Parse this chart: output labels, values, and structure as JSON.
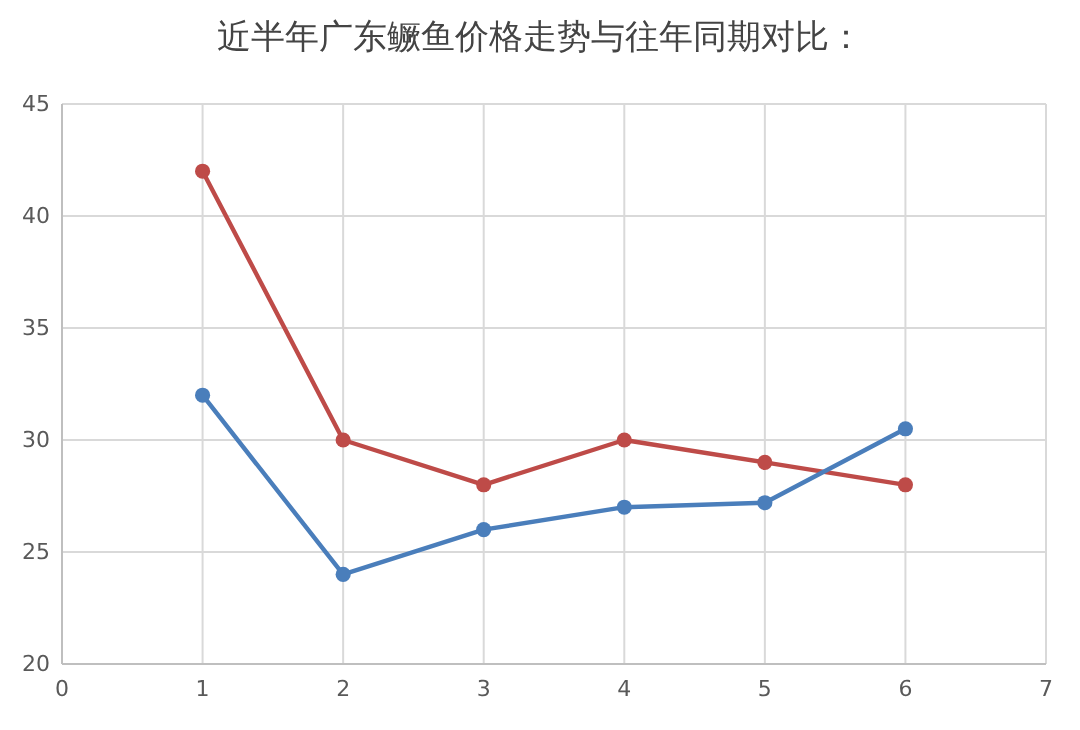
{
  "chart_data": {
    "type": "line",
    "title": "近半年广东鳜鱼价格走势与往年同期对比：",
    "x": [
      1,
      2,
      3,
      4,
      5,
      6
    ],
    "series": [
      {
        "color": "#be4b48",
        "values": [
          42,
          30,
          28,
          30,
          29,
          28
        ]
      },
      {
        "color": "#4a7ebb",
        "values": [
          32,
          24,
          26,
          27,
          27.2,
          30.5
        ]
      }
    ],
    "xlim": [
      0,
      7
    ],
    "xticks": [
      0,
      1,
      2,
      3,
      4,
      5,
      6,
      7
    ],
    "ylim": [
      20,
      45
    ],
    "yticks": [
      20,
      25,
      30,
      35,
      40,
      45
    ],
    "grid": true,
    "marker": "circle",
    "line_style": "solid"
  }
}
